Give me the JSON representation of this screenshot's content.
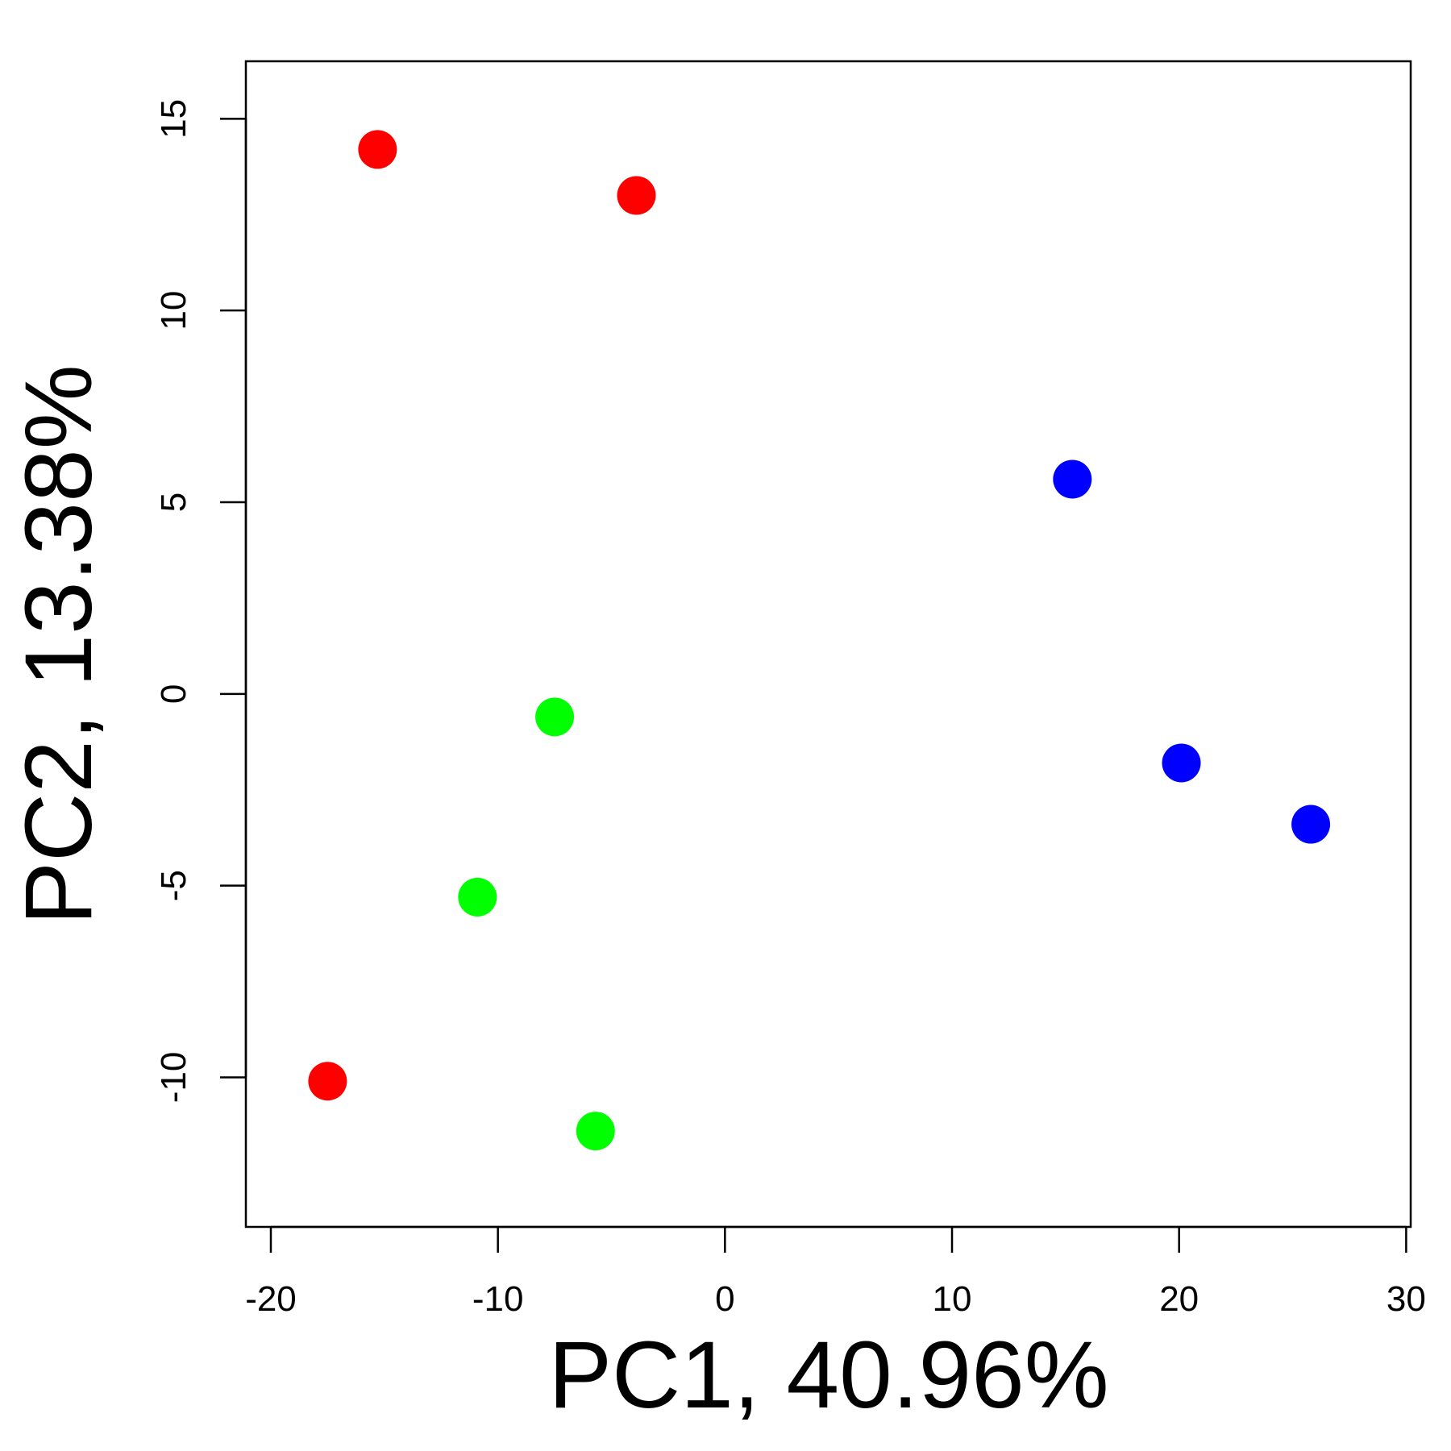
{
  "chart_data": {
    "type": "scatter",
    "title": "",
    "xlabel": "PC1, 40.96%",
    "ylabel": "PC2, 13.38%",
    "xlim": [
      -21.1,
      30.2
    ],
    "ylim": [
      -13.9,
      16.5
    ],
    "xticks": [
      -20,
      -10,
      0,
      10,
      20,
      30
    ],
    "yticks": [
      -10,
      -5,
      0,
      5,
      10,
      15
    ],
    "grid": false,
    "legend": "none",
    "point_colors": {
      "red": "#ff0000",
      "green": "#00ff00",
      "blue": "#0000ff"
    },
    "points": [
      {
        "x": -15.3,
        "y": 14.2,
        "color": "red"
      },
      {
        "x": -3.9,
        "y": 13.0,
        "color": "red"
      },
      {
        "x": -17.5,
        "y": -10.1,
        "color": "red"
      },
      {
        "x": -7.5,
        "y": -0.6,
        "color": "green"
      },
      {
        "x": -10.9,
        "y": -5.3,
        "color": "green"
      },
      {
        "x": -5.7,
        "y": -11.4,
        "color": "green"
      },
      {
        "x": 15.3,
        "y": 5.6,
        "color": "blue"
      },
      {
        "x": 20.1,
        "y": -1.8,
        "color": "blue"
      },
      {
        "x": 25.8,
        "y": -3.4,
        "color": "blue"
      }
    ]
  }
}
